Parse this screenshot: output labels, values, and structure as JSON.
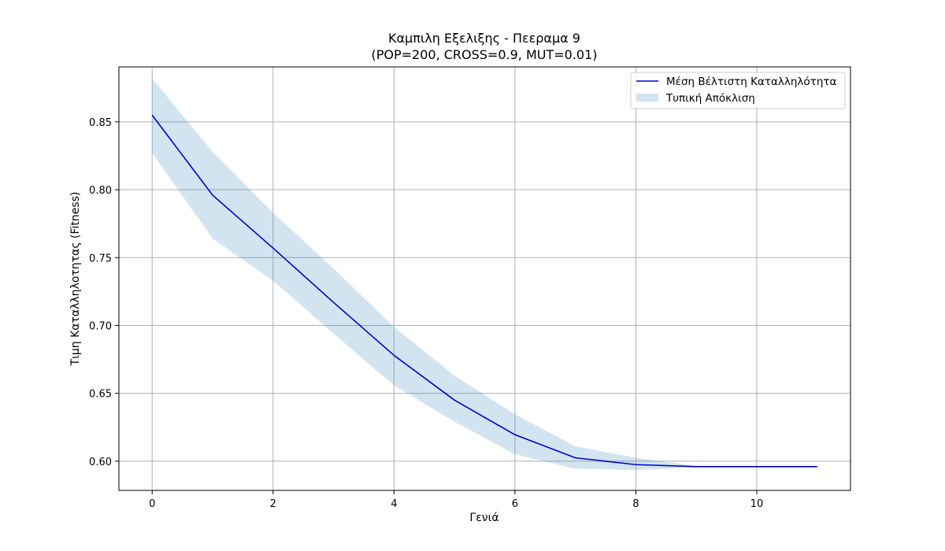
{
  "chart_data": {
    "type": "line",
    "title": "Καμπιλη Εξελιξης - Πεεραμα 9",
    "subtitle": "(POP=200, CROSS=0.9, MUT=0.01)",
    "xlabel": "Γενιά",
    "ylabel": "Τιμη Καταλληλοτητας (Fitness)",
    "xlim": [
      -0.55,
      11.55
    ],
    "ylim": [
      0.5785,
      0.8905
    ],
    "xticks": [
      0,
      2,
      4,
      6,
      8,
      10
    ],
    "yticks": [
      0.6,
      0.65,
      0.7,
      0.75,
      0.8,
      0.85
    ],
    "ytick_format": 2,
    "grid": true,
    "legend_position": "top-right",
    "x": [
      0,
      1,
      2,
      3,
      4,
      5,
      6,
      7,
      8,
      9,
      10,
      11
    ],
    "series": [
      {
        "name": "Μέση Βέλτιστη Καταλληλότητα",
        "values": [
          0.855,
          0.796,
          0.757,
          0.717,
          0.678,
          0.645,
          0.6195,
          0.6025,
          0.5975,
          0.596,
          0.596,
          0.596
        ],
        "color": "#0000cd"
      }
    ],
    "band": {
      "name": "Τυπική Απόκλιση",
      "lower": [
        0.827,
        0.764,
        0.733,
        0.694,
        0.656,
        0.629,
        0.605,
        0.5945,
        0.5935,
        0.5955,
        0.596,
        0.596
      ],
      "upper": [
        0.882,
        0.828,
        0.783,
        0.742,
        0.699,
        0.663,
        0.6345,
        0.611,
        0.6025,
        0.5965,
        0.596,
        0.596
      ],
      "color": "#1f77b4",
      "opacity": 0.2
    }
  }
}
